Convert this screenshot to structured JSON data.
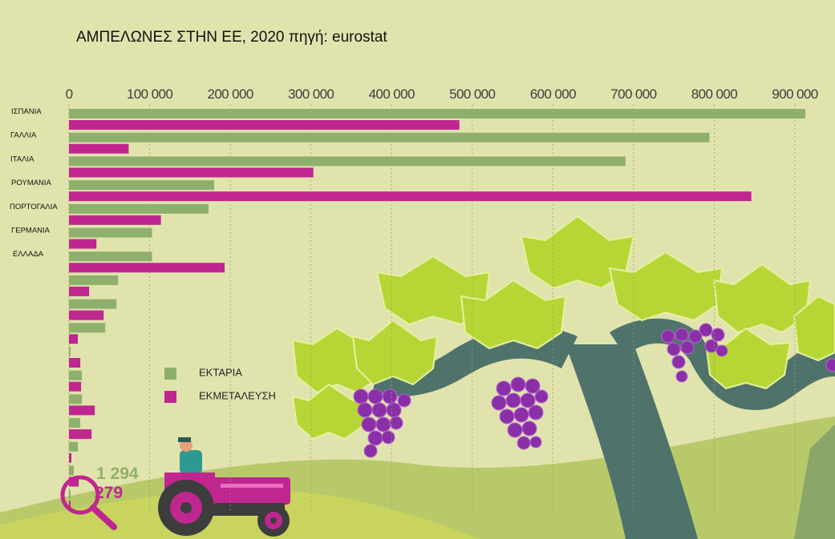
{
  "title": "ΑΜΠΕΛΩΝΕΣ ΣΤΗΝ ΕΕ, 2020 πηγή: eurostat",
  "colors": {
    "hectares": "#8fb06c",
    "holdings": "#c0268f",
    "background": "#e1e3ad",
    "trunk": "#4f736b"
  },
  "chart_data": {
    "type": "bar",
    "orientation": "horizontal",
    "title": "ΑΜΠΕΛΩΝΕΣ ΣΤΗΝ ΕΕ, 2020 πηγή: eurostat",
    "xlim": [
      0,
      900000
    ],
    "ticks": [
      "0",
      "100 000",
      "200 000",
      "300 000",
      "400 000",
      "500 000",
      "600 000",
      "700 000",
      "800 000",
      "900 000"
    ],
    "tick_values": [
      0,
      100000,
      200000,
      300000,
      400000,
      500000,
      600000,
      700000,
      800000,
      900000
    ],
    "categories": [
      "ΙΣΠΑΝΙΑ",
      "ΓΑΛΛΙΑ",
      "ΙΤΑΛΙΑ",
      "ΡΟΥΜΑΝΙΑ",
      "ΠΟΡΤΟΓΑΛΙΑ",
      "ΓΕΡΜΑΝΙΑ",
      "ΕΛΛΑΔΑ",
      "",
      "",
      "",
      "",
      "",
      "",
      "",
      "",
      "",
      ""
    ],
    "series": [
      {
        "name": "ΕΚΤΑΡΙΑ",
        "values": [
          913000,
          794000,
          690000,
          180000,
          173000,
          103000,
          103000,
          61000,
          59000,
          45000,
          1000,
          16000,
          16000,
          14000,
          11000,
          6000,
          1294
        ]
      },
      {
        "name": "ΕΚΜΕΤΑΛΕΥΣΗ",
        "values": [
          484000,
          74000,
          303000,
          846000,
          114000,
          34000,
          193000,
          25000,
          43000,
          11000,
          14000,
          15000,
          32000,
          28000,
          3000,
          12000,
          279
        ]
      }
    ],
    "legend": [
      "ΕΚΤΑΡΙΑ",
      "ΕΚΜΕΤΑΛΕΥΣΗ"
    ],
    "legend_position": "bottom-left",
    "annotation": {
      "hectares_value": "1 294",
      "holdings_value": "279"
    }
  }
}
